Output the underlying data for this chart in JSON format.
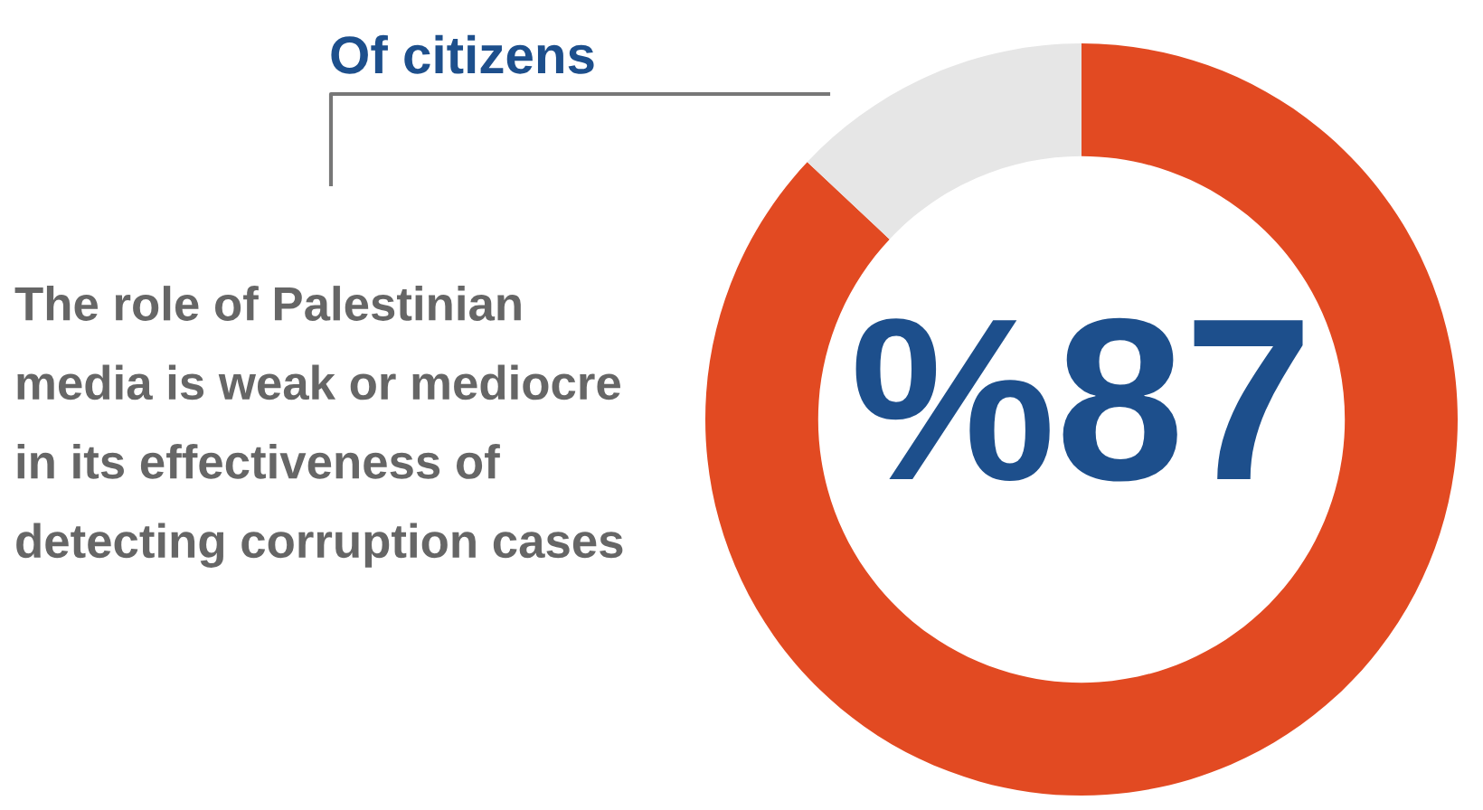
{
  "chart_data": {
    "type": "donut",
    "title": "Of citizens",
    "categories": [
      null,
      null
    ],
    "values": [
      87,
      13
    ],
    "colors": [
      "#e24a22",
      "#e6e6e6"
    ],
    "value_labels": [
      "%87",
      null
    ],
    "annotations": [
      "The role of Palestinian\nmedia is weak or mediocre\nin its effectiveness of\ndetecting corruption cases"
    ]
  }
}
